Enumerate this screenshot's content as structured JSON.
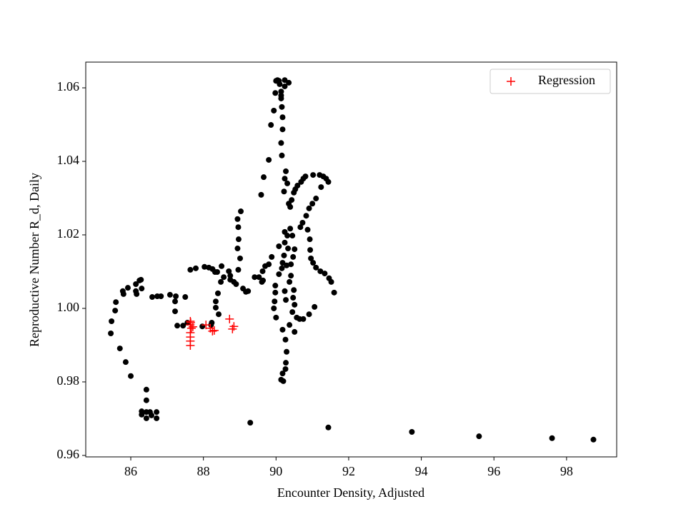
{
  "chart_data": {
    "type": "scatter",
    "x_label": "Encounter Density, Adjusted",
    "y_label": "Reproductive Number R_d, Daily",
    "xlim": [
      84.76,
      99.38
    ],
    "ylim": [
      0.9596,
      1.067
    ],
    "xticks": [
      86,
      88,
      90,
      92,
      94,
      96,
      98
    ],
    "yticks": [
      {
        "value": 0.96,
        "label": "0.96"
      },
      {
        "value": 0.98,
        "label": "0.98"
      },
      {
        "value": 1.0,
        "label": "1.00"
      },
      {
        "value": 1.02,
        "label": "1.02"
      },
      {
        "value": 1.04,
        "label": "1.04"
      },
      {
        "value": 1.06,
        "label": "1.06"
      }
    ],
    "grid": false,
    "legend": "upper right",
    "series": [
      {
        "color": "#000000",
        "marker": "o",
        "x": [
          85.45,
          85.47,
          85.57,
          85.59,
          85.8,
          85.92,
          85.78,
          86.14,
          86.16,
          86.14,
          86.24,
          86.28,
          86.3,
          86.59,
          86.73,
          86.83,
          87.08,
          87.24,
          87.5,
          87.22,
          87.22,
          87.28,
          87.44,
          87.56,
          87.64,
          87.79,
          88.03,
          88.15,
          88.25,
          88.32,
          88.38,
          88.5,
          88.7,
          88.74,
          88.74,
          88.84,
          88.9,
          88.56,
          88.48,
          88.4,
          88.34,
          88.34,
          88.42,
          88.23,
          88.21,
          87.97,
          85.7,
          85.86,
          86.0,
          86.43,
          86.43,
          86.3,
          86.3,
          86.43,
          86.53,
          86.57,
          86.71,
          86.71,
          86.43,
          89.29,
          91.44,
          93.74,
          95.59,
          97.6,
          98.74,
          88.96,
          89.01,
          88.94,
          88.97,
          88.96,
          88.94,
          89.03,
          89.09,
          89.17,
          89.23,
          89.59,
          89.66,
          89.8,
          89.86,
          89.94,
          89.98,
          90.0,
          90.04,
          90.08,
          90.1,
          90.14,
          90.14,
          90.16,
          90.18,
          90.18,
          90.14,
          90.16,
          90.24,
          90.35,
          90.24,
          90.14,
          90.27,
          90.24,
          90.31,
          90.22,
          90.35,
          90.39,
          90.43,
          90.49,
          90.53,
          90.59,
          90.69,
          90.75,
          90.81,
          91.02,
          91.2,
          91.3,
          91.38,
          91.44,
          91.24,
          91.1,
          91.0,
          90.91,
          90.83,
          90.73,
          90.67,
          90.87,
          90.93,
          90.94,
          90.96,
          91.02,
          91.1,
          91.22,
          91.34,
          91.46,
          91.52,
          91.6,
          91.06,
          90.91,
          90.75,
          90.65,
          90.57,
          90.45,
          90.51,
          90.47,
          90.49,
          90.41,
          90.41,
          90.47,
          90.51,
          90.45,
          90.39,
          90.31,
          90.24,
          90.22,
          90.18,
          90.08,
          90.16,
          89.98,
          89.98,
          89.96,
          89.94,
          90.0,
          90.18,
          90.26,
          90.29,
          90.27,
          90.26,
          90.18,
          90.2,
          90.14,
          89.41,
          89.53,
          89.63,
          89.7,
          89.8,
          89.88,
          90.08,
          89.64,
          89.61,
          90.24,
          90.37,
          90.51,
          90.24,
          90.33,
          90.29,
          90.37,
          90.27
        ],
        "y": [
          0.9932,
          0.9965,
          0.9994,
          1.0017,
          1.0039,
          1.0056,
          1.0047,
          1.0047,
          1.0039,
          1.0066,
          1.0076,
          1.0078,
          1.0054,
          1.0031,
          1.0033,
          1.0033,
          1.0037,
          1.0033,
          1.0031,
          1.0019,
          0.9992,
          0.9953,
          0.9953,
          0.9961,
          1.0105,
          1.0109,
          1.0113,
          1.0111,
          1.0107,
          1.0099,
          1.0099,
          1.0115,
          1.0101,
          1.0089,
          1.0078,
          1.0072,
          1.0066,
          1.0085,
          1.0072,
          1.0041,
          1.0019,
          1.0002,
          0.9984,
          0.9961,
          0.9955,
          0.9951,
          0.9891,
          0.9854,
          0.9816,
          0.9779,
          0.975,
          0.972,
          0.9711,
          0.9718,
          0.9718,
          0.9709,
          0.9718,
          0.9701,
          0.9701,
          0.9689,
          0.9676,
          0.9664,
          0.9652,
          0.9647,
          0.9643,
          1.0105,
          1.0136,
          1.0163,
          1.0188,
          1.0221,
          1.0243,
          1.0264,
          1.0054,
          1.0045,
          1.0047,
          1.0309,
          1.0357,
          1.0404,
          1.0499,
          1.0538,
          1.0586,
          1.0619,
          1.0621,
          1.0619,
          1.061,
          1.059,
          1.0571,
          1.0548,
          1.052,
          1.0487,
          1.045,
          1.0416,
          1.0621,
          1.0614,
          1.0604,
          1.0579,
          1.0373,
          1.0353,
          1.034,
          1.0318,
          1.0285,
          1.0276,
          1.0295,
          1.0315,
          1.0324,
          1.0334,
          1.0344,
          1.0353,
          1.0359,
          1.0363,
          1.0363,
          1.0359,
          1.0353,
          1.0344,
          1.033,
          1.0299,
          1.0285,
          1.0272,
          1.0252,
          1.0233,
          1.0221,
          1.0214,
          1.0188,
          1.0159,
          1.0136,
          1.0124,
          1.0111,
          1.0101,
          1.0095,
          1.0082,
          1.0072,
          1.0043,
          1.0004,
          0.9984,
          0.9971,
          0.9971,
          0.9975,
          0.999,
          1.001,
          1.0029,
          1.005,
          1.0089,
          1.012,
          1.014,
          1.0161,
          1.0198,
          1.0217,
          1.0198,
          1.0179,
          1.0144,
          1.0124,
          1.0093,
          1.0109,
          1.0062,
          1.0043,
          1.0019,
          1.0,
          0.9975,
          0.9942,
          0.9915,
          0.9882,
          0.9852,
          0.9835,
          0.9823,
          0.9802,
          0.9806,
          1.0085,
          1.0085,
          1.0101,
          1.0115,
          1.012,
          1.014,
          1.0169,
          1.0076,
          1.0072,
          1.0047,
          0.9955,
          0.9936,
          1.0208,
          1.0163,
          1.0117,
          1.0072,
          1.0023
        ]
      },
      {
        "name": "Regression",
        "color": "#ff0000",
        "marker": "+",
        "x": [
          87.64,
          87.64,
          87.67,
          87.64,
          87.64,
          87.64,
          87.64,
          87.65,
          87.71,
          88.07,
          88.19,
          88.25,
          88.3,
          88.72,
          88.8,
          88.84
        ],
        "y": [
          0.9965,
          0.9955,
          0.9946,
          0.9934,
          0.9922,
          0.9911,
          0.9899,
          0.9961,
          0.995,
          0.9955,
          0.9946,
          0.9938,
          0.994,
          0.9971,
          0.9944,
          0.9951
        ]
      }
    ]
  }
}
